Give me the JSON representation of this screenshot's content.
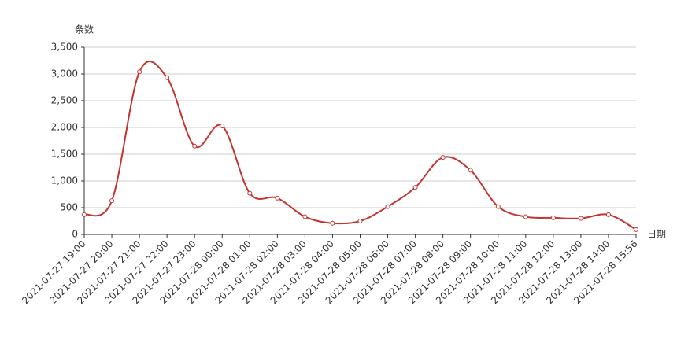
{
  "chart_data": {
    "type": "line",
    "y_label": "条数",
    "x_label": "日期",
    "categories": [
      "2021-07-27 19:00",
      "2021-07-27 20:00",
      "2021-07-27 21:00",
      "2021-07-27 22:00",
      "2021-07-27 23:00",
      "2021-07-28 00:00",
      "2021-07-28 01:00",
      "2021-07-28 02:00",
      "2021-07-28 03:00",
      "2021-07-28 04:00",
      "2021-07-28 05:00",
      "2021-07-28 06:00",
      "2021-07-28 07:00",
      "2021-07-28 08:00",
      "2021-07-28 09:00",
      "2021-07-28 10:00",
      "2021-07-28 11:00",
      "2021-07-28 12:00",
      "2021-07-28 13:00",
      "2021-07-28 14:00",
      "2021-07-28 15:56"
    ],
    "values": [
      370,
      630,
      3040,
      2930,
      1650,
      2030,
      770,
      680,
      330,
      210,
      250,
      520,
      880,
      1440,
      1200,
      520,
      330,
      310,
      300,
      370,
      90
    ],
    "color": "#c23531",
    "smooth": true,
    "ylim": [
      0,
      3500
    ],
    "yticks": [
      0,
      500,
      {
        "value": 1000,
        "label": "1,000"
      },
      {
        "value": 1500,
        "label": "1,500"
      },
      {
        "value": 2000,
        "label": "2,000"
      },
      {
        "value": 2500,
        "label": "2,500"
      },
      {
        "value": 3000,
        "label": "3,000"
      },
      {
        "value": 3500,
        "label": "3,500"
      }
    ],
    "grid": true
  }
}
